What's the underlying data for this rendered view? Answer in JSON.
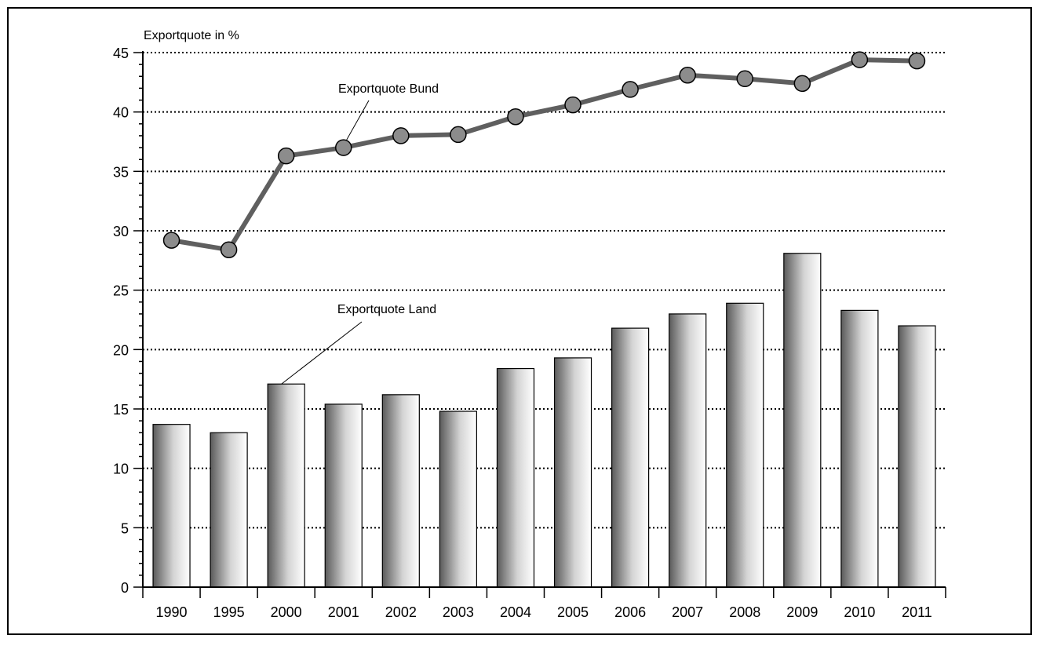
{
  "chart_data": {
    "type": "bar",
    "title": "",
    "ylabel": "Exportquote in %",
    "xlabel": "",
    "categories": [
      "1990",
      "1995",
      "2000",
      "2001",
      "2002",
      "2003",
      "2004",
      "2005",
      "2006",
      "2007",
      "2008",
      "2009",
      "2010",
      "2011"
    ],
    "ylim": [
      0,
      45
    ],
    "yticks": [
      0,
      5,
      10,
      15,
      20,
      25,
      30,
      35,
      40,
      45
    ],
    "grid": true,
    "series": [
      {
        "name": "Exportquote Land",
        "type": "bar",
        "values": [
          13.7,
          13.0,
          17.1,
          15.4,
          16.2,
          14.8,
          18.4,
          19.3,
          21.8,
          23.0,
          23.9,
          28.1,
          23.3,
          22.0
        ]
      },
      {
        "name": "Exportquote Bund",
        "type": "line",
        "values": [
          29.2,
          28.4,
          36.3,
          37.0,
          38.0,
          38.1,
          39.6,
          40.6,
          41.9,
          43.1,
          42.8,
          42.4,
          44.4,
          44.3
        ]
      }
    ],
    "annotations": [
      {
        "text": "Exportquote Bund",
        "series": "Exportquote Bund",
        "category": "2001"
      },
      {
        "text": "Exportquote Land",
        "series": "Exportquote Land",
        "category": "2000"
      }
    ],
    "colors": {
      "line": "#5f5f5f",
      "marker_fill": "#8c8c8c",
      "bar_stroke": "#000000",
      "bar_dark": "#5a5a5a",
      "bar_light": "#ffffff",
      "grid": "#000000",
      "frame": "#000000"
    }
  }
}
